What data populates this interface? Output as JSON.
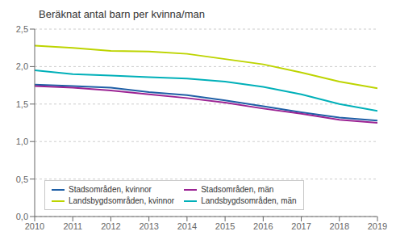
{
  "chart_data": {
    "type": "line",
    "title": "Beräknat antal barn per kvinna/man",
    "x": [
      2010,
      2011,
      2012,
      2013,
      2014,
      2015,
      2016,
      2017,
      2018,
      2019
    ],
    "series": [
      {
        "name": "Stadsområden, kvinnor",
        "color": "#1f5fa6",
        "values": [
          1.76,
          1.74,
          1.72,
          1.66,
          1.62,
          1.55,
          1.47,
          1.39,
          1.32,
          1.28
        ]
      },
      {
        "name": "Stadsområden, män",
        "color": "#9b2393",
        "values": [
          1.74,
          1.72,
          1.68,
          1.63,
          1.58,
          1.52,
          1.44,
          1.37,
          1.29,
          1.25
        ]
      },
      {
        "name": "Landsbygdsområden, kvinnor",
        "color": "#bdd400",
        "values": [
          2.28,
          2.25,
          2.21,
          2.2,
          2.17,
          2.1,
          2.03,
          1.92,
          1.8,
          1.71
        ]
      },
      {
        "name": "Landsbygdsområden, män",
        "color": "#00b0b9",
        "values": [
          1.95,
          1.9,
          1.88,
          1.86,
          1.84,
          1.8,
          1.73,
          1.63,
          1.5,
          1.41
        ]
      }
    ],
    "xlim": [
      2010,
      2019
    ],
    "xticks": [
      2010,
      2011,
      2012,
      2013,
      2014,
      2015,
      2016,
      2017,
      2018,
      2019
    ],
    "ylim": [
      0.0,
      2.5
    ],
    "yticks": [
      {
        "value": 0.0,
        "label": "0,0"
      },
      {
        "value": 0.5,
        "label": "0,5"
      },
      {
        "value": 1.0,
        "label": "1,0"
      },
      {
        "value": 1.5,
        "label": "1,5"
      },
      {
        "value": 2.0,
        "label": "2,0"
      },
      {
        "value": 2.5,
        "label": "2,5"
      }
    ],
    "grid": true,
    "legend": "lower left"
  }
}
